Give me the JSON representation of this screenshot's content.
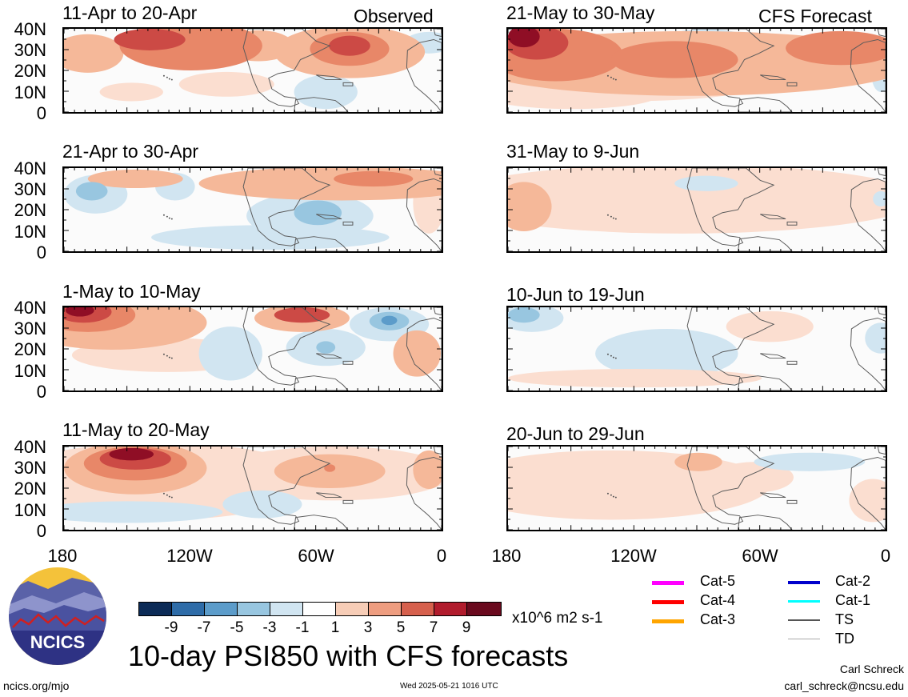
{
  "headers": {
    "left": "Observed",
    "right": "CFS Forecast"
  },
  "lat_labels": [
    "40N",
    "30N",
    "20N",
    "10N",
    "0"
  ],
  "lon_labels": [
    "180",
    "120W",
    "60W",
    "0"
  ],
  "panels": [
    {
      "title": "11-Apr to 20-Apr",
      "blobs": [
        {
          "cx": 30,
          "cy": 32,
          "rx": 45,
          "ry": 25,
          "level": 3
        },
        {
          "cx": 160,
          "cy": 22,
          "rx": 90,
          "ry": 32,
          "level": 5
        },
        {
          "cx": 108,
          "cy": 14,
          "rx": 45,
          "ry": 14,
          "level": 7
        },
        {
          "cx": 85,
          "cy": 82,
          "rx": 40,
          "ry": 12,
          "level": 1
        },
        {
          "cx": 205,
          "cy": 72,
          "rx": 60,
          "ry": 16,
          "level": 1
        },
        {
          "cx": 360,
          "cy": 30,
          "rx": 95,
          "ry": 34,
          "level": 3
        },
        {
          "cx": 360,
          "cy": 26,
          "rx": 50,
          "ry": 22,
          "level": 5
        },
        {
          "cx": 360,
          "cy": 22,
          "rx": 26,
          "ry": 13,
          "level": 7
        },
        {
          "cx": 245,
          "cy": 22,
          "rx": 45,
          "ry": 20,
          "level": 3
        },
        {
          "cx": 330,
          "cy": 82,
          "rx": 40,
          "ry": 22,
          "level": -1
        },
        {
          "cx": 460,
          "cy": 18,
          "rx": 30,
          "ry": 14,
          "level": -1
        }
      ]
    },
    {
      "title": "21-May to 30-May",
      "blobs": [
        {
          "cx": 230,
          "cy": 45,
          "rx": 280,
          "ry": 42,
          "level": 3
        },
        {
          "cx": 140,
          "cy": 78,
          "rx": 160,
          "ry": 16,
          "level": 1
        },
        {
          "cx": 60,
          "cy": 34,
          "rx": 85,
          "ry": 34,
          "level": 5
        },
        {
          "cx": 36,
          "cy": 18,
          "rx": 40,
          "ry": 22,
          "level": 7
        },
        {
          "cx": 20,
          "cy": 10,
          "rx": 20,
          "ry": 14,
          "level": 9
        },
        {
          "cx": 210,
          "cy": 40,
          "rx": 80,
          "ry": 24,
          "level": 5
        },
        {
          "cx": 420,
          "cy": 25,
          "rx": 70,
          "ry": 22,
          "level": 5
        },
        {
          "cx": 80,
          "cy": 86,
          "rx": 110,
          "ry": 18,
          "level": 1
        },
        {
          "cx": 250,
          "cy": 8,
          "rx": 40,
          "ry": 8,
          "level": -1
        },
        {
          "cx": 470,
          "cy": 58,
          "rx": 12,
          "ry": 24,
          "level": -1
        }
      ]
    },
    {
      "title": "21-Apr to 30-Apr",
      "blobs": [
        {
          "cx": 350,
          "cy": 20,
          "rx": 180,
          "ry": 22,
          "level": 3
        },
        {
          "cx": 390,
          "cy": 14,
          "rx": 50,
          "ry": 10,
          "level": 5
        },
        {
          "cx": 90,
          "cy": 14,
          "rx": 60,
          "ry": 12,
          "level": 3
        },
        {
          "cx": 40,
          "cy": 34,
          "rx": 40,
          "ry": 25,
          "level": -1
        },
        {
          "cx": 35,
          "cy": 30,
          "rx": 20,
          "ry": 12,
          "level": -3
        },
        {
          "cx": 140,
          "cy": 24,
          "rx": 25,
          "ry": 18,
          "level": -1
        },
        {
          "cx": 310,
          "cy": 62,
          "rx": 80,
          "ry": 30,
          "level": -1
        },
        {
          "cx": 320,
          "cy": 58,
          "rx": 30,
          "ry": 16,
          "level": -3
        },
        {
          "cx": 260,
          "cy": 90,
          "rx": 150,
          "ry": 16,
          "level": -1
        },
        {
          "cx": 460,
          "cy": 45,
          "rx": 20,
          "ry": 40,
          "level": 1
        }
      ]
    },
    {
      "title": "31-May to 9-Jun",
      "blobs": [
        {
          "cx": 220,
          "cy": 40,
          "rx": 300,
          "ry": 45,
          "level": 1
        },
        {
          "cx": 20,
          "cy": 50,
          "rx": 35,
          "ry": 32,
          "level": 3
        },
        {
          "cx": 320,
          "cy": 42,
          "rx": 90,
          "ry": 25,
          "level": 1
        },
        {
          "cx": 250,
          "cy": 20,
          "rx": 40,
          "ry": 10,
          "level": -1
        },
        {
          "cx": 470,
          "cy": 40,
          "rx": 10,
          "ry": 10,
          "level": -1
        }
      ]
    },
    {
      "title": "1-May to 10-May",
      "blobs": [
        {
          "cx": 60,
          "cy": 20,
          "rx": 120,
          "ry": 35,
          "level": 3
        },
        {
          "cx": 30,
          "cy": 10,
          "rx": 60,
          "ry": 22,
          "level": 5
        },
        {
          "cx": 25,
          "cy": 6,
          "rx": 35,
          "ry": 14,
          "level": 7
        },
        {
          "cx": 20,
          "cy": 4,
          "rx": 18,
          "ry": 8,
          "level": 9
        },
        {
          "cx": 130,
          "cy": 62,
          "rx": 120,
          "ry": 22,
          "level": 1
        },
        {
          "cx": 300,
          "cy": 14,
          "rx": 60,
          "ry": 18,
          "level": 3
        },
        {
          "cx": 300,
          "cy": 10,
          "rx": 35,
          "ry": 10,
          "level": 7
        },
        {
          "cx": 410,
          "cy": 22,
          "rx": 50,
          "ry": 22,
          "level": -1
        },
        {
          "cx": 410,
          "cy": 18,
          "rx": 25,
          "ry": 12,
          "level": -3
        },
        {
          "cx": 410,
          "cy": 17,
          "rx": 10,
          "ry": 6,
          "level": -5
        },
        {
          "cx": 330,
          "cy": 52,
          "rx": 50,
          "ry": 24,
          "level": -1
        },
        {
          "cx": 330,
          "cy": 52,
          "rx": 12,
          "ry": 8,
          "level": -3
        },
        {
          "cx": 210,
          "cy": 60,
          "rx": 40,
          "ry": 35,
          "level": -1
        },
        {
          "cx": 445,
          "cy": 60,
          "rx": 30,
          "ry": 30,
          "level": 3
        }
      ]
    },
    {
      "title": "10-Jun to 19-Jun",
      "blobs": [
        {
          "cx": 30,
          "cy": 14,
          "rx": 40,
          "ry": 18,
          "level": -1
        },
        {
          "cx": 20,
          "cy": 10,
          "rx": 20,
          "ry": 10,
          "level": -3
        },
        {
          "cx": 200,
          "cy": 60,
          "rx": 90,
          "ry": 32,
          "level": -1
        },
        {
          "cx": 330,
          "cy": 25,
          "rx": 55,
          "ry": 20,
          "level": 1
        },
        {
          "cx": 160,
          "cy": 92,
          "rx": 160,
          "ry": 12,
          "level": 1
        },
        {
          "cx": 470,
          "cy": 40,
          "rx": 20,
          "ry": 20,
          "level": -1
        }
      ]
    },
    {
      "title": "11-May to 20-May",
      "blobs": [
        {
          "cx": 120,
          "cy": 45,
          "rx": 200,
          "ry": 50,
          "level": 1
        },
        {
          "cx": 90,
          "cy": 28,
          "rx": 90,
          "ry": 34,
          "level": 3
        },
        {
          "cx": 90,
          "cy": 22,
          "rx": 65,
          "ry": 22,
          "level": 5
        },
        {
          "cx": 90,
          "cy": 16,
          "rx": 45,
          "ry": 14,
          "level": 7
        },
        {
          "cx": 85,
          "cy": 10,
          "rx": 28,
          "ry": 8,
          "level": 9
        },
        {
          "cx": 340,
          "cy": 35,
          "rx": 150,
          "ry": 35,
          "level": 1
        },
        {
          "cx": 335,
          "cy": 32,
          "rx": 70,
          "ry": 22,
          "level": 3
        },
        {
          "cx": 335,
          "cy": 28,
          "rx": 7,
          "ry": 5,
          "level": 5
        },
        {
          "cx": 250,
          "cy": 75,
          "rx": 50,
          "ry": 18,
          "level": -1
        },
        {
          "cx": 80,
          "cy": 85,
          "rx": 120,
          "ry": 14,
          "level": -1
        },
        {
          "cx": 460,
          "cy": 30,
          "rx": 20,
          "ry": 25,
          "level": 3
        }
      ]
    },
    {
      "title": "20-Jun to 29-Jun",
      "blobs": [
        {
          "cx": 130,
          "cy": 50,
          "rx": 200,
          "ry": 45,
          "level": 1
        },
        {
          "cx": 240,
          "cy": 20,
          "rx": 30,
          "ry": 12,
          "level": 3
        },
        {
          "cx": 310,
          "cy": 40,
          "rx": 50,
          "ry": 20,
          "level": 1
        },
        {
          "cx": 380,
          "cy": 20,
          "rx": 70,
          "ry": 12,
          "level": -1
        },
        {
          "cx": 460,
          "cy": 70,
          "rx": 30,
          "ry": 28,
          "level": 1
        }
      ]
    }
  ],
  "colorbar": {
    "levels": [
      "-9",
      "-7",
      "-5",
      "-3",
      "-1",
      "1",
      "3",
      "5",
      "7",
      "9"
    ],
    "units": "x10^6 m2 s-1",
    "colors": [
      "#0c2b57",
      "#2e6ca8",
      "#5c9cca",
      "#98c6e0",
      "#d1e5f1",
      "#ffffff",
      "#f7cdb7",
      "#ee9d80",
      "#d6604d",
      "#b11c2d",
      "#6a0a1e"
    ]
  },
  "level_colors": {
    "-9": "#0c2b57",
    "-7": "#2e6ca8",
    "-5": "#5c9cca",
    "-3": "#98c6e0",
    "-1": "#d1e5f1",
    "1": "#fbded0",
    "3": "#f5b899",
    "5": "#e88768",
    "7": "#cc4a45",
    "9": "#8f0e25"
  },
  "legend": [
    {
      "label": "Cat-5",
      "color": "#ff00ff"
    },
    {
      "label": "Cat-4",
      "color": "#ff0000"
    },
    {
      "label": "Cat-3",
      "color": "#ffa500"
    },
    {
      "label": "Cat-2",
      "color": "#0000cc"
    },
    {
      "label": "Cat-1",
      "color": "#00ffff"
    },
    {
      "label": "TS",
      "color": "#555555"
    },
    {
      "label": "TD",
      "color": "#aaaaaa"
    }
  ],
  "logo": {
    "text": "NCICS"
  },
  "main_title": "10-day PSI850 with CFS forecasts",
  "url": "ncics.org/mjo",
  "timestamp": "Wed 2025-05-21 1016 UTC",
  "author": "Carl Schreck",
  "email": "carl_schreck@ncsu.edu"
}
